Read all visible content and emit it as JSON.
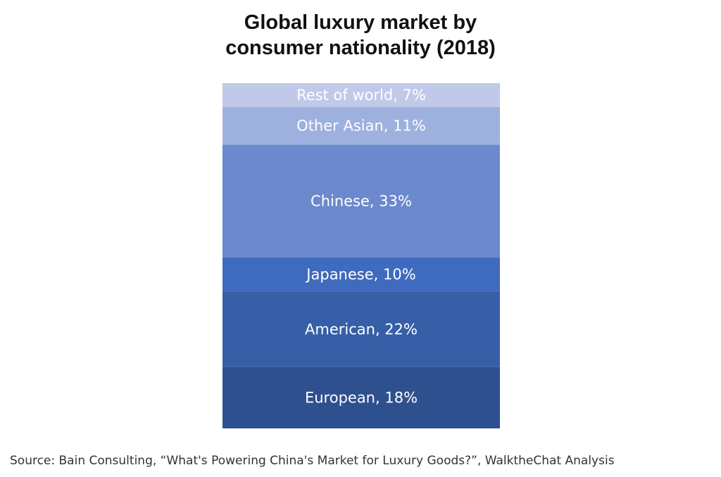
{
  "chart_data": {
    "type": "bar",
    "stacked": true,
    "title_lines": [
      "Global luxury market by",
      "consumer nationality (2018)"
    ],
    "xlabel": "",
    "ylabel": "",
    "grid": false,
    "legend": "none",
    "segments": [
      {
        "label": "European, 18%",
        "value": 18,
        "color": "#2f508f"
      },
      {
        "label": "American, 22%",
        "value": 22,
        "color": "#365fa8"
      },
      {
        "label": "Japanese, 10%",
        "value": 10,
        "color": "#3f6bbe"
      },
      {
        "label": "Chinese, 33%",
        "value": 33,
        "color": "#6b89cc"
      },
      {
        "label": "Other Asian, 11%",
        "value": 11,
        "color": "#9eb0de"
      },
      {
        "label": "Rest of world, 7%",
        "value": 7,
        "color": "#c0cae8"
      }
    ]
  },
  "source": "Source: Bain Consulting, “What's Powering China's Market for Luxury Goods?”, WalktheChat Analysis"
}
